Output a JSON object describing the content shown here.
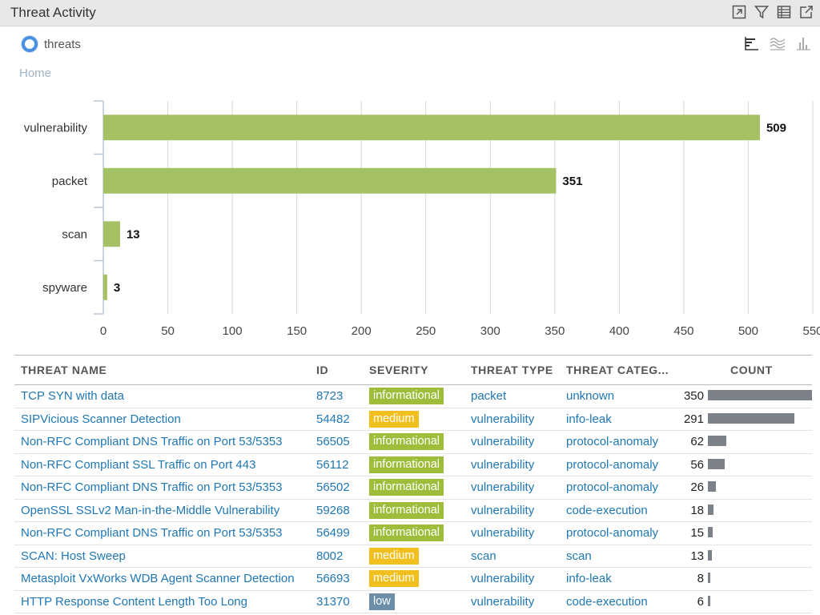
{
  "window": {
    "title": "Threat Activity",
    "icons": [
      "expand-icon",
      "filter-icon",
      "table-icon",
      "export-icon"
    ]
  },
  "legend": {
    "label": "threats",
    "color": "#4a90e2"
  },
  "view_icons": [
    "bar-view-icon",
    "area-view-icon",
    "column-view-icon"
  ],
  "breadcrumb": "Home",
  "chart_data": {
    "type": "bar",
    "orientation": "horizontal",
    "categories": [
      "vulnerability",
      "packet",
      "scan",
      "spyware"
    ],
    "values": [
      509,
      351,
      13,
      3
    ],
    "series": [
      {
        "name": "threats",
        "values": [
          509,
          351,
          13,
          3
        ]
      }
    ],
    "xlim": [
      0,
      550
    ],
    "xticks": [
      0,
      50,
      100,
      150,
      200,
      250,
      300,
      350,
      400,
      450,
      500,
      550
    ],
    "grid": true,
    "bar_color": "#a4c263",
    "data_labels": true
  },
  "table": {
    "headers": {
      "name": "THREAT NAME",
      "id": "ID",
      "severity": "SEVERITY",
      "type": "THREAT TYPE",
      "category": "THREAT CATEG...",
      "count": "COUNT"
    },
    "max_count": 350,
    "rows": [
      {
        "name": "TCP SYN with data",
        "id": "8723",
        "severity": "informational",
        "type": "packet",
        "category": "unknown",
        "count": 350
      },
      {
        "name": "SIPVicious Scanner Detection",
        "id": "54482",
        "severity": "medium",
        "type": "vulnerability",
        "category": "info-leak",
        "count": 291
      },
      {
        "name": "Non-RFC Compliant DNS Traffic on Port 53/5353",
        "id": "56505",
        "severity": "informational",
        "type": "vulnerability",
        "category": "protocol-anomaly",
        "count": 62
      },
      {
        "name": "Non-RFC Compliant SSL Traffic on Port 443",
        "id": "56112",
        "severity": "informational",
        "type": "vulnerability",
        "category": "protocol-anomaly",
        "count": 56
      },
      {
        "name": "Non-RFC Compliant DNS Traffic on Port 53/5353",
        "id": "56502",
        "severity": "informational",
        "type": "vulnerability",
        "category": "protocol-anomaly",
        "count": 26
      },
      {
        "name": "OpenSSL SSLv2 Man-in-the-Middle Vulnerability",
        "id": "59268",
        "severity": "informational",
        "type": "vulnerability",
        "category": "code-execution",
        "count": 18
      },
      {
        "name": "Non-RFC Compliant DNS Traffic on Port 53/5353",
        "id": "56499",
        "severity": "informational",
        "type": "vulnerability",
        "category": "protocol-anomaly",
        "count": 15
      },
      {
        "name": "SCAN: Host Sweep",
        "id": "8002",
        "severity": "medium",
        "type": "scan",
        "category": "scan",
        "count": 13
      },
      {
        "name": "Metasploit VxWorks WDB Agent Scanner Detection",
        "id": "56693",
        "severity": "medium",
        "type": "vulnerability",
        "category": "info-leak",
        "count": 8
      },
      {
        "name": "HTTP Response Content Length Too Long",
        "id": "31370",
        "severity": "low",
        "type": "vulnerability",
        "category": "code-execution",
        "count": 6
      }
    ]
  }
}
